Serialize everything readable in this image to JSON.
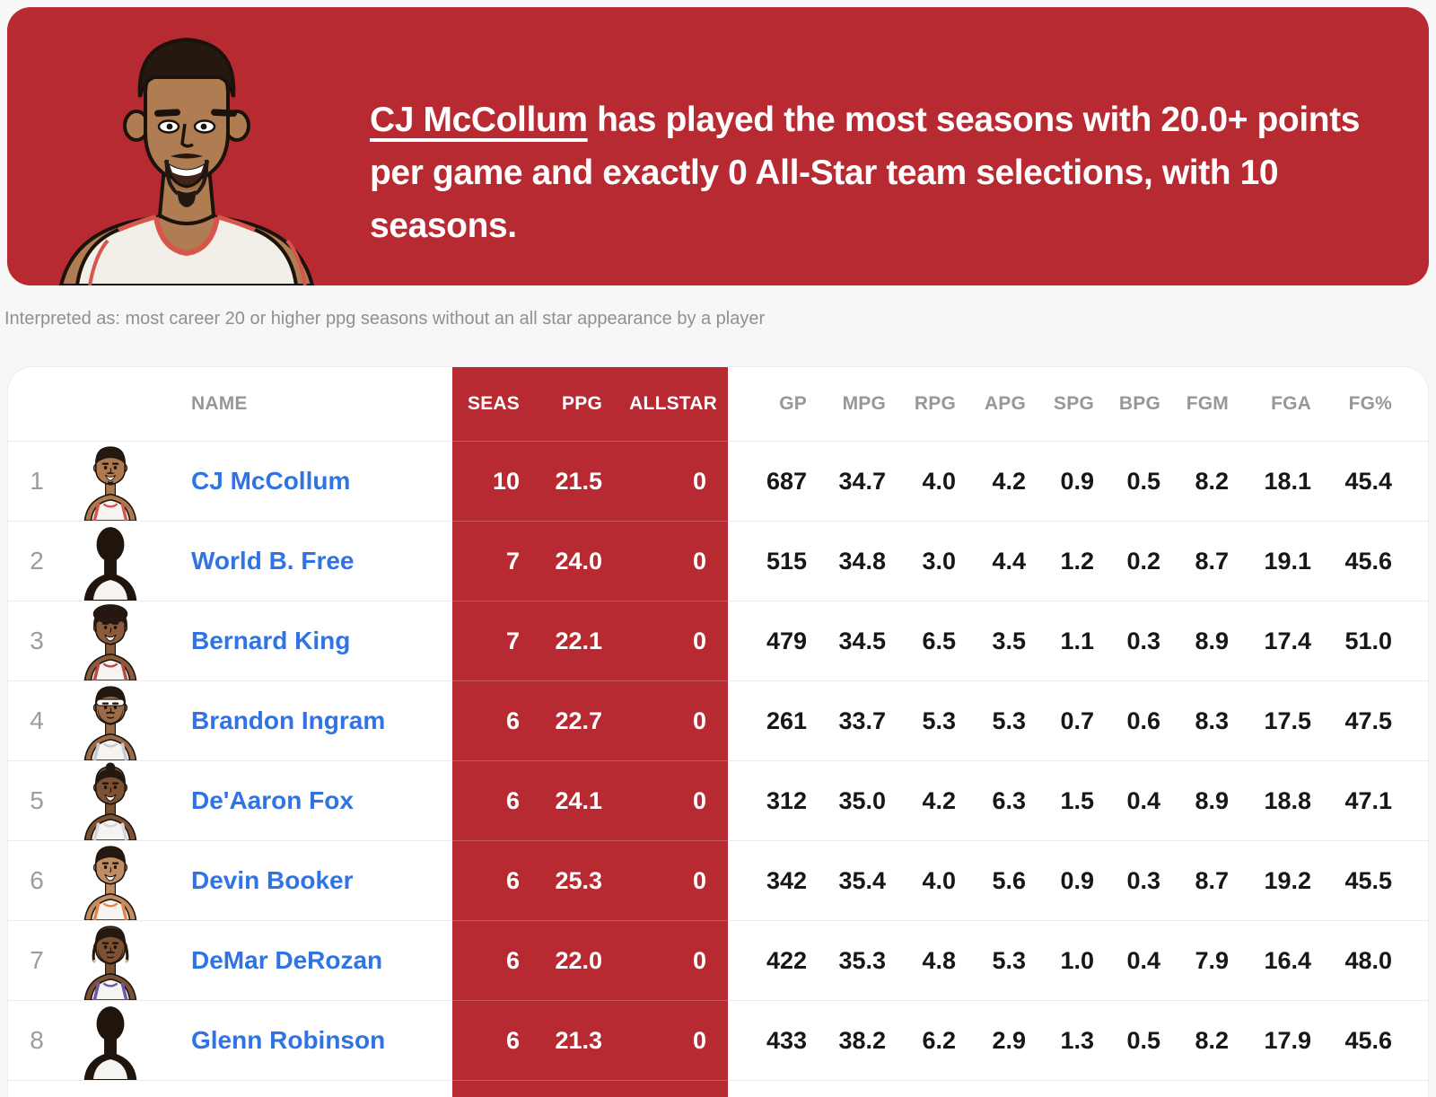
{
  "theme": {
    "red": "#b72a32",
    "link_blue": "#3073e5",
    "header_gray": "#97979b",
    "rank_gray": "#9b9ba0",
    "stat_text": "#17171a",
    "page_bg": "#f7f7f8",
    "card_bg": "#ffffff",
    "separator": "#ebebec"
  },
  "banner": {
    "bg_color": "#b72a32",
    "illustration": "cj-mccollum-cartoon-portrait",
    "portrait": {
      "skin": "#b07c52",
      "hair": "#241811",
      "jersey": "#f2efe9",
      "trim": "#d6564b"
    },
    "headline": {
      "player": "CJ McCollum",
      "rest": " has played the most seasons with 20.0+ points per game and exactly 0 All-Star team selections, with 10 seasons."
    }
  },
  "interpretation_line": "Interpreted as: most career 20 or higher ppg seasons without an all star appearance by a player",
  "table": {
    "highlighted_stat_keys": [
      "seas",
      "ppg",
      "allstar"
    ],
    "columns": [
      {
        "key": "name",
        "label": "NAME",
        "highlight": false
      },
      {
        "key": "seas",
        "label": "SEAS",
        "highlight": true
      },
      {
        "key": "ppg",
        "label": "PPG",
        "highlight": true
      },
      {
        "key": "allstar",
        "label": "ALLSTAR",
        "highlight": true
      },
      {
        "key": "gp",
        "label": "GP",
        "highlight": false
      },
      {
        "key": "mpg",
        "label": "MPG",
        "highlight": false
      },
      {
        "key": "rpg",
        "label": "RPG",
        "highlight": false
      },
      {
        "key": "apg",
        "label": "APG",
        "highlight": false
      },
      {
        "key": "spg",
        "label": "SPG",
        "highlight": false
      },
      {
        "key": "bpg",
        "label": "BPG",
        "highlight": false
      },
      {
        "key": "fgm",
        "label": "FGM",
        "highlight": false
      },
      {
        "key": "fga",
        "label": "FGA",
        "highlight": false
      },
      {
        "key": "fgp",
        "label": "FG%",
        "highlight": false
      }
    ],
    "rows": [
      {
        "rank": 1,
        "name": "CJ McCollum",
        "seas": "10",
        "ppg": "21.5",
        "allstar": "0",
        "gp": "687",
        "mpg": "34.7",
        "rpg": "4.0",
        "apg": "4.2",
        "spg": "0.9",
        "bpg": "0.5",
        "fgm": "8.2",
        "fga": "18.1",
        "fgp": "45.4",
        "avatar": {
          "style": "cartoon",
          "skin": "#ab7a50",
          "hair": "short",
          "facial": "goatee",
          "trim": "#d6564b"
        }
      },
      {
        "rank": 2,
        "name": "World B. Free",
        "seas": "7",
        "ppg": "24.0",
        "allstar": "0",
        "gp": "515",
        "mpg": "34.8",
        "rpg": "3.0",
        "apg": "4.4",
        "spg": "1.2",
        "bpg": "0.2",
        "fgm": "8.7",
        "fga": "19.1",
        "fgp": "45.6",
        "avatar": {
          "style": "silhouette"
        }
      },
      {
        "rank": 3,
        "name": "Bernard King",
        "seas": "7",
        "ppg": "22.1",
        "allstar": "0",
        "gp": "479",
        "mpg": "34.5",
        "rpg": "6.5",
        "apg": "3.5",
        "spg": "1.1",
        "bpg": "0.3",
        "fgm": "8.9",
        "fga": "17.4",
        "fgp": "51.0",
        "avatar": {
          "style": "cartoon",
          "skin": "#8a5c3c",
          "hair": "afro",
          "facial": "smile",
          "trim": "#b64a42"
        }
      },
      {
        "rank": 4,
        "name": "Brandon Ingram",
        "seas": "6",
        "ppg": "22.7",
        "allstar": "0",
        "gp": "261",
        "mpg": "33.7",
        "rpg": "5.3",
        "apg": "5.3",
        "spg": "0.7",
        "bpg": "0.6",
        "fgm": "8.3",
        "fga": "17.5",
        "fgp": "47.5",
        "avatar": {
          "style": "cartoon",
          "skin": "#9a6b46",
          "hair": "headband",
          "facial": "beard",
          "trim": "#c9c9cd"
        }
      },
      {
        "rank": 5,
        "name": "De'Aaron Fox",
        "seas": "6",
        "ppg": "24.1",
        "allstar": "0",
        "gp": "312",
        "mpg": "35.0",
        "rpg": "4.2",
        "apg": "6.3",
        "spg": "1.5",
        "bpg": "0.4",
        "fgm": "8.9",
        "fga": "18.8",
        "fgp": "47.1",
        "avatar": {
          "style": "cartoon",
          "skin": "#7d5134",
          "hair": "bun",
          "facial": "smile",
          "trim": "#d5d5d8"
        }
      },
      {
        "rank": 6,
        "name": "Devin Booker",
        "seas": "6",
        "ppg": "25.3",
        "allstar": "0",
        "gp": "342",
        "mpg": "35.4",
        "rpg": "4.0",
        "apg": "5.6",
        "spg": "0.9",
        "bpg": "0.3",
        "fgm": "8.7",
        "fga": "19.2",
        "fgp": "45.5",
        "avatar": {
          "style": "cartoon",
          "skin": "#c08d63",
          "hair": "short",
          "facial": "smile",
          "trim": "#e0874a"
        }
      },
      {
        "rank": 7,
        "name": "DeMar DeRozan",
        "seas": "6",
        "ppg": "22.0",
        "allstar": "0",
        "gp": "422",
        "mpg": "35.3",
        "rpg": "4.8",
        "apg": "5.3",
        "spg": "1.0",
        "bpg": "0.4",
        "fgm": "7.9",
        "fga": "16.4",
        "fgp": "48.0",
        "avatar": {
          "style": "cartoon",
          "skin": "#7d5134",
          "hair": "braids",
          "facial": "beard",
          "trim": "#6f57a8"
        }
      },
      {
        "rank": 8,
        "name": "Glenn Robinson",
        "seas": "6",
        "ppg": "21.3",
        "allstar": "0",
        "gp": "433",
        "mpg": "38.2",
        "rpg": "6.2",
        "apg": "2.9",
        "spg": "1.3",
        "bpg": "0.5",
        "fgm": "8.2",
        "fga": "17.9",
        "fgp": "45.6",
        "avatar": {
          "style": "silhouette"
        }
      }
    ]
  }
}
